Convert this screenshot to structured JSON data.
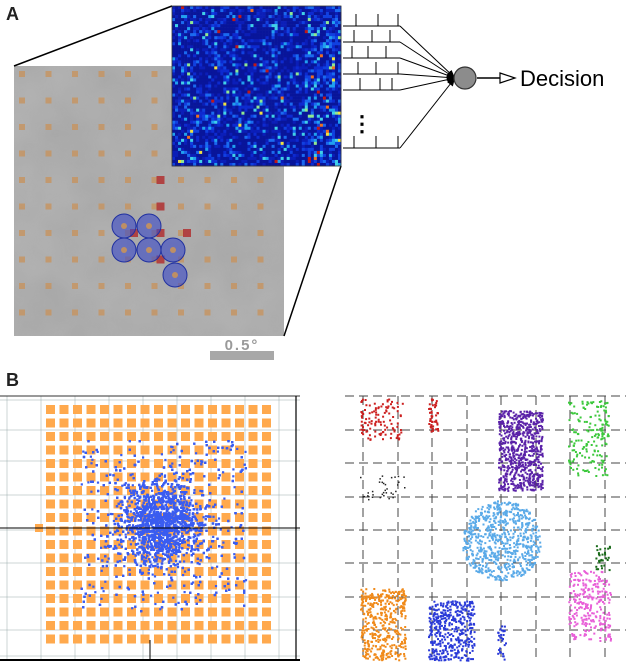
{
  "panel_a": {
    "label": "A",
    "decision_label": "Decision",
    "ellipsis": "⋮",
    "scale_bar_label": "0.5°"
  },
  "panel_b": {
    "label": "B"
  },
  "colors": {
    "stimulus_grid_marker": "#c8925a",
    "highlighted_marker": "#b03030",
    "receptive_field": "#3848c8",
    "heatmap_low": "#0a1aa8",
    "decision_node": "#8c8c8c",
    "stimulus_square": "#ffa94d",
    "population_dots": "#3a5cf0",
    "cluster_red": "#cc2020",
    "cluster_black": "#222222",
    "cluster_purple": "#5a22a8",
    "cluster_lightblue": "#5aaae8",
    "cluster_green": "#3cc83c",
    "cluster_darkgreen": "#1a6a1a",
    "cluster_pink": "#e860d8",
    "cluster_orange": "#f08a1a",
    "cluster_blue": "#2a3ad8"
  }
}
